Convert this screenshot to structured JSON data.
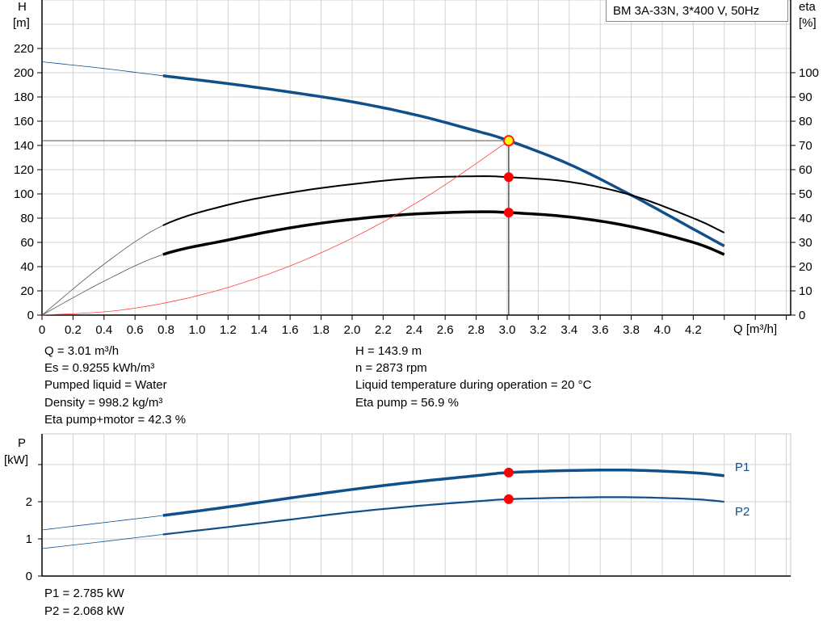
{
  "chart_data": [
    {
      "type": "line",
      "title": "BM 3A-33N, 3*400 V, 50Hz",
      "xlabel": "Q [m³/h]",
      "ylabel": "H\n[m]",
      "ylabel_lines": [
        "H",
        "[m]"
      ],
      "y2label_lines": [
        "eta",
        "[%]"
      ],
      "xlim": [
        0,
        4.82
      ],
      "ylim": [
        0,
        260
      ],
      "y2lim": [
        0,
        130
      ],
      "xticks": [
        "0",
        "0.2",
        "0.4",
        "0.6",
        "0.8",
        "1.0",
        "1.2",
        "1.4",
        "1.6",
        "1.8",
        "2.0",
        "2.2",
        "2.4",
        "2.6",
        "2.8",
        "3.0",
        "3.2",
        "3.4",
        "3.6",
        "3.8",
        "4.0",
        "4.2"
      ],
      "yticks": [
        0,
        20,
        40,
        60,
        80,
        100,
        120,
        140,
        160,
        180,
        200,
        220
      ],
      "y2ticks": [
        0,
        10,
        20,
        30,
        40,
        50,
        60,
        70,
        80,
        90,
        100
      ],
      "grid": true,
      "operating_point": {
        "Q": 3.01,
        "H": 143.9,
        "eta_pump": 56.9,
        "eta_pump_motor": 42.3
      },
      "series": [
        {
          "id": "H",
          "axis": "left",
          "color": "#0f4f8a",
          "x": [
            0,
            0.4,
            0.78,
            1.2,
            1.6,
            2.0,
            2.4,
            2.8,
            3.01,
            3.4,
            3.8,
            4.2,
            4.4
          ],
          "y": [
            209,
            203.5,
            197.5,
            191,
            184,
            176,
            165.5,
            152,
            143.9,
            124.5,
            99,
            71,
            57
          ]
        },
        {
          "id": "eta-pump",
          "axis": "right",
          "color": "#000000",
          "x": [
            0,
            0.4,
            0.78,
            1.2,
            1.6,
            2.0,
            2.4,
            2.8,
            3.01,
            3.4,
            3.8,
            4.2,
            4.4
          ],
          "y": [
            0,
            21,
            37,
            45.5,
            50.5,
            54,
            56.5,
            57.3,
            56.9,
            55,
            49.5,
            40,
            34
          ]
        },
        {
          "id": "eta-pump-motor",
          "axis": "right",
          "color": "#000000",
          "x": [
            0,
            0.4,
            0.78,
            1.2,
            1.6,
            2.0,
            2.4,
            2.8,
            3.01,
            3.4,
            3.8,
            4.2,
            4.4
          ],
          "y": [
            0,
            14,
            25,
            31,
            36,
            39.5,
            41.7,
            42.6,
            42.3,
            40.5,
            36.5,
            30,
            25
          ]
        },
        {
          "id": "system-curve",
          "axis": "left",
          "color": "#ff4040",
          "x": [
            0,
            0.5,
            1.0,
            1.5,
            2.0,
            2.5,
            3.01
          ],
          "y": [
            0,
            4,
            15.9,
            35.7,
            63.5,
            99.3,
            143.9
          ]
        }
      ]
    },
    {
      "type": "line",
      "ylabel_lines": [
        "P",
        "[kW]"
      ],
      "xlim": [
        0,
        4.82
      ],
      "ylim": [
        0,
        3.8
      ],
      "yticks": [
        "0",
        "1",
        "2"
      ],
      "grid": true,
      "series": [
        {
          "name": "P1",
          "color": "#0f4f8a",
          "x": [
            0,
            0.4,
            0.78,
            1.2,
            1.6,
            2.0,
            2.4,
            2.8,
            3.01,
            3.4,
            3.8,
            4.2,
            4.4
          ],
          "y": [
            1.24,
            1.44,
            1.63,
            1.86,
            2.1,
            2.33,
            2.53,
            2.7,
            2.785,
            2.84,
            2.85,
            2.78,
            2.7
          ]
        },
        {
          "name": "P2",
          "color": "#0f4f8a",
          "x": [
            0,
            0.4,
            0.78,
            1.2,
            1.6,
            2.0,
            2.4,
            2.8,
            3.01,
            3.4,
            3.8,
            4.2,
            4.4
          ],
          "y": [
            0.74,
            0.93,
            1.12,
            1.32,
            1.52,
            1.72,
            1.88,
            2.01,
            2.068,
            2.11,
            2.12,
            2.07,
            2.0
          ]
        }
      ],
      "operating_point": {
        "Q": 3.01,
        "P1": 2.785,
        "P2": 2.068
      }
    }
  ],
  "info": {
    "left": [
      "Q = 3.01 m³/h",
      "Es = 0.9255 kWh/m³",
      "Pumped liquid = Water",
      "Density = 998.2 kg/m³",
      "Eta pump+motor = 42.3 %"
    ],
    "right": [
      "H = 143.9 m",
      "n = 2873 rpm",
      "Liquid temperature during operation = 20 °C",
      "Eta pump = 56.9 %"
    ],
    "power": [
      "P1 = 2.785 kW",
      "P2 = 2.068 kW"
    ]
  },
  "colors": {
    "curve_blue": "#0f4f8a",
    "point_red": "#ff0000",
    "duty_point_yellow": "#ffff00",
    "grid": "#d0d0d0"
  }
}
